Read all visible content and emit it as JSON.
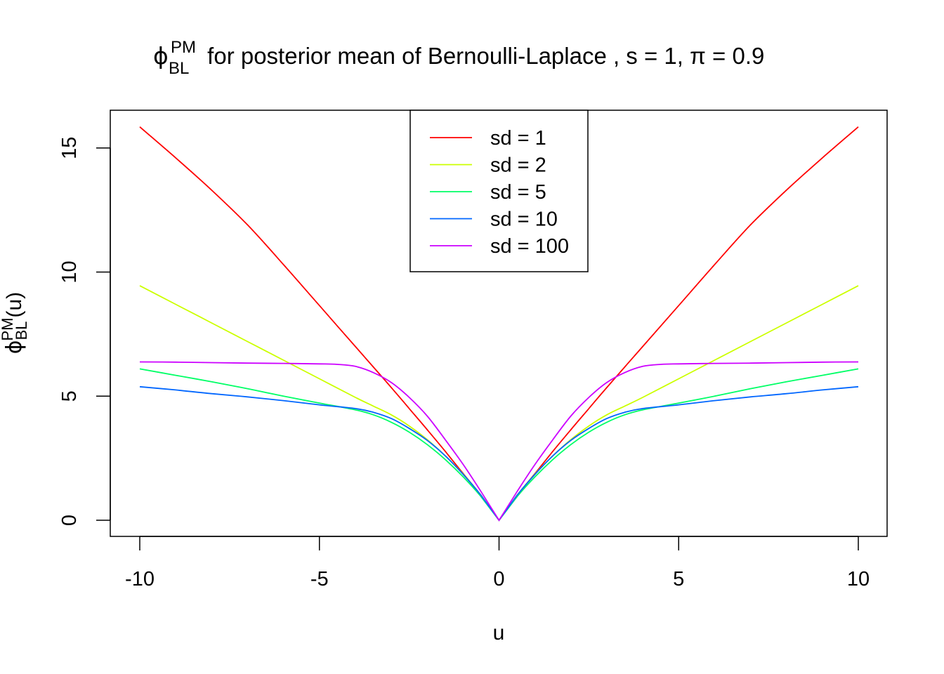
{
  "chart_data": {
    "type": "line",
    "title": {
      "phi": "ϕ",
      "sup": "PM",
      "sub": "BL",
      "rest": " for posterior mean of Bernoulli-Laplace , s = 1, π = 0.9"
    },
    "xlabel": "u",
    "ylabel": {
      "phi": "ϕ",
      "sup": "PM",
      "sub": "BL",
      "rest": "(u)"
    },
    "xlim": [
      -10,
      10
    ],
    "ylim": [
      0,
      16
    ],
    "x_ticks": [
      -10,
      -5,
      0,
      5,
      10
    ],
    "x_tick_labels": [
      "-10",
      "-5",
      "0",
      "5",
      "10"
    ],
    "y_ticks": [
      0,
      5,
      10,
      15
    ],
    "y_tick_labels": [
      "0",
      "5",
      "10",
      "15"
    ],
    "grid": false,
    "legend_position": "top-center",
    "series": [
      {
        "name": "sd = 1",
        "color": "#ff0000",
        "points": [
          [
            0,
            0
          ],
          [
            0.5,
            1.0
          ],
          [
            1,
            1.88
          ],
          [
            1.5,
            2.78
          ],
          [
            2,
            3.65
          ],
          [
            2.5,
            4.5
          ],
          [
            3,
            5.35
          ],
          [
            4,
            7.0
          ],
          [
            5,
            8.65
          ],
          [
            6,
            10.3
          ],
          [
            7,
            11.9
          ],
          [
            8,
            13.3
          ],
          [
            9,
            14.6
          ],
          [
            10,
            15.85
          ]
        ]
      },
      {
        "name": "sd = 2",
        "color": "#ccff00",
        "points": [
          [
            0,
            0
          ],
          [
            0.5,
            1.0
          ],
          [
            1,
            1.86
          ],
          [
            1.5,
            2.6
          ],
          [
            2,
            3.25
          ],
          [
            2.5,
            3.8
          ],
          [
            3,
            4.25
          ],
          [
            3.5,
            4.6
          ],
          [
            4,
            4.95
          ],
          [
            5,
            5.7
          ],
          [
            6,
            6.45
          ],
          [
            7,
            7.2
          ],
          [
            8,
            7.95
          ],
          [
            9,
            8.7
          ],
          [
            10,
            9.45
          ]
        ]
      },
      {
        "name": "sd = 5",
        "color": "#00ff66",
        "points": [
          [
            0,
            0
          ],
          [
            0.5,
            0.95
          ],
          [
            1,
            1.75
          ],
          [
            1.5,
            2.45
          ],
          [
            2,
            3.05
          ],
          [
            2.5,
            3.55
          ],
          [
            3,
            3.95
          ],
          [
            3.5,
            4.25
          ],
          [
            4,
            4.45
          ],
          [
            5,
            4.72
          ],
          [
            6,
            5.0
          ],
          [
            7,
            5.3
          ],
          [
            8,
            5.58
          ],
          [
            9,
            5.84
          ],
          [
            10,
            6.1
          ]
        ]
      },
      {
        "name": "sd = 10",
        "color": "#0066ff",
        "points": [
          [
            0,
            0
          ],
          [
            0.5,
            1.0
          ],
          [
            1,
            1.85
          ],
          [
            1.5,
            2.6
          ],
          [
            2,
            3.22
          ],
          [
            2.5,
            3.7
          ],
          [
            3,
            4.1
          ],
          [
            3.5,
            4.35
          ],
          [
            4,
            4.5
          ],
          [
            5,
            4.65
          ],
          [
            6,
            4.82
          ],
          [
            7,
            4.97
          ],
          [
            8,
            5.1
          ],
          [
            9,
            5.25
          ],
          [
            10,
            5.38
          ]
        ]
      },
      {
        "name": "sd = 100",
        "color": "#cc00ff",
        "points": [
          [
            0,
            0
          ],
          [
            0.5,
            1.15
          ],
          [
            1,
            2.25
          ],
          [
            1.5,
            3.25
          ],
          [
            2,
            4.2
          ],
          [
            2.5,
            4.95
          ],
          [
            3,
            5.55
          ],
          [
            3.5,
            5.95
          ],
          [
            4,
            6.2
          ],
          [
            4.5,
            6.28
          ],
          [
            5,
            6.3
          ],
          [
            6,
            6.32
          ],
          [
            7,
            6.33
          ],
          [
            8,
            6.35
          ],
          [
            9,
            6.37
          ],
          [
            10,
            6.38
          ]
        ]
      }
    ]
  }
}
